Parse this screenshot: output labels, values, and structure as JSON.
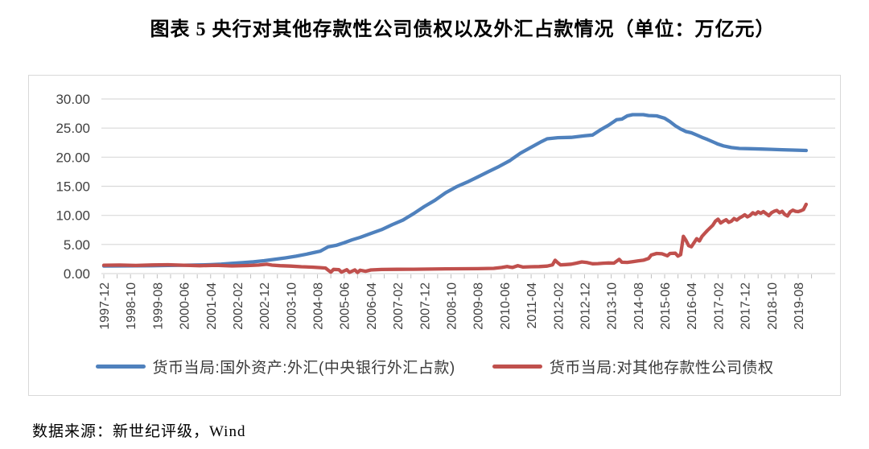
{
  "page": {
    "title": "图表 5  央行对其他存款性公司债权以及外汇占款情况（单位：万亿元）",
    "source": "数据来源：新世纪评级，Wind"
  },
  "chart_data": {
    "type": "line",
    "title": "央行对其他存款性公司债权以及外汇占款情况",
    "unit": "万亿元",
    "grid": true,
    "legend_position": "bottom",
    "x_axis": {
      "start": "1997-12",
      "end": "2019-11",
      "months_per_tick": 10,
      "tick_labels": [
        "1997-12",
        "1998-10",
        "1999-08",
        "2000-06",
        "2001-04",
        "2002-02",
        "2002-12",
        "2003-10",
        "2004-08",
        "2005-06",
        "2006-04",
        "2007-02",
        "2007-12",
        "2008-10",
        "2009-08",
        "2010-06",
        "2011-04",
        "2012-02",
        "2012-12",
        "2013-10",
        "2014-08",
        "2015-06",
        "2016-04",
        "2017-02",
        "2017-12",
        "2018-10",
        "2019-08"
      ]
    },
    "y_axis": {
      "min": 0,
      "max": 30,
      "step": 5,
      "tick_labels": [
        "0.00",
        "5.00",
        "10.00",
        "15.00",
        "20.00",
        "25.00",
        "30.00"
      ]
    },
    "series": [
      {
        "name": "货币当局:国外资产:外汇(中央银行外汇占款)",
        "color": "#4f81bd",
        "points": [
          [
            0,
            1.3
          ],
          [
            6,
            1.31
          ],
          [
            12,
            1.33
          ],
          [
            18,
            1.36
          ],
          [
            24,
            1.4
          ],
          [
            30,
            1.44
          ],
          [
            36,
            1.48
          ],
          [
            40,
            1.53
          ],
          [
            44,
            1.62
          ],
          [
            48,
            1.75
          ],
          [
            52,
            1.88
          ],
          [
            56,
            2.02
          ],
          [
            60,
            2.21
          ],
          [
            64,
            2.45
          ],
          [
            68,
            2.7
          ],
          [
            72,
            2.98
          ],
          [
            76,
            3.35
          ],
          [
            79,
            3.65
          ],
          [
            81,
            3.85
          ],
          [
            84,
            4.59
          ],
          [
            87,
            4.85
          ],
          [
            90,
            5.3
          ],
          [
            93,
            5.8
          ],
          [
            96,
            6.22
          ],
          [
            100,
            6.9
          ],
          [
            104,
            7.55
          ],
          [
            108,
            8.41
          ],
          [
            112,
            9.2
          ],
          [
            116,
            10.3
          ],
          [
            120,
            11.52
          ],
          [
            124,
            12.6
          ],
          [
            128,
            13.9
          ],
          [
            132,
            14.91
          ],
          [
            136,
            15.7
          ],
          [
            140,
            16.6
          ],
          [
            144,
            17.52
          ],
          [
            148,
            18.4
          ],
          [
            152,
            19.4
          ],
          [
            156,
            20.68
          ],
          [
            160,
            21.7
          ],
          [
            164,
            22.7
          ],
          [
            166,
            23.15
          ],
          [
            170,
            23.35
          ],
          [
            175,
            23.4
          ],
          [
            180,
            23.67
          ],
          [
            183,
            23.8
          ],
          [
            186,
            24.7
          ],
          [
            189,
            25.5
          ],
          [
            192,
            26.44
          ],
          [
            194,
            26.55
          ],
          [
            196,
            27.1
          ],
          [
            198,
            27.3
          ],
          [
            202,
            27.3
          ],
          [
            204,
            27.15
          ],
          [
            207,
            27.1
          ],
          [
            210,
            26.7
          ],
          [
            212,
            26.1
          ],
          [
            214,
            25.4
          ],
          [
            216,
            24.85
          ],
          [
            218,
            24.4
          ],
          [
            220,
            24.2
          ],
          [
            222,
            23.8
          ],
          [
            224,
            23.4
          ],
          [
            226,
            23.05
          ],
          [
            228,
            22.65
          ],
          [
            230,
            22.25
          ],
          [
            232,
            21.94
          ],
          [
            235,
            21.65
          ],
          [
            238,
            21.5
          ],
          [
            242,
            21.45
          ],
          [
            246,
            21.4
          ],
          [
            250,
            21.35
          ],
          [
            254,
            21.28
          ],
          [
            258,
            21.22
          ],
          [
            263,
            21.15
          ]
        ]
      },
      {
        "name": "货币当局:对其他存款性公司债权",
        "color": "#c0504d",
        "points": [
          [
            0,
            1.44
          ],
          [
            6,
            1.46
          ],
          [
            12,
            1.4
          ],
          [
            18,
            1.48
          ],
          [
            24,
            1.52
          ],
          [
            30,
            1.44
          ],
          [
            36,
            1.36
          ],
          [
            42,
            1.42
          ],
          [
            48,
            1.32
          ],
          [
            54,
            1.38
          ],
          [
            58,
            1.46
          ],
          [
            61,
            1.6
          ],
          [
            63,
            1.45
          ],
          [
            66,
            1.35
          ],
          [
            70,
            1.28
          ],
          [
            74,
            1.18
          ],
          [
            78,
            1.1
          ],
          [
            81,
            1.02
          ],
          [
            83,
            0.95
          ],
          [
            84,
            0.6
          ],
          [
            85,
            0.25
          ],
          [
            86,
            0.72
          ],
          [
            88,
            0.68
          ],
          [
            89,
            0.25
          ],
          [
            91,
            0.66
          ],
          [
            92,
            0.22
          ],
          [
            94,
            0.64
          ],
          [
            95,
            0.2
          ],
          [
            96,
            0.58
          ],
          [
            98,
            0.4
          ],
          [
            100,
            0.62
          ],
          [
            104,
            0.7
          ],
          [
            110,
            0.73
          ],
          [
            116,
            0.75
          ],
          [
            122,
            0.78
          ],
          [
            128,
            0.81
          ],
          [
            134,
            0.83
          ],
          [
            140,
            0.85
          ],
          [
            146,
            0.9
          ],
          [
            149,
            1.05
          ],
          [
            151,
            1.22
          ],
          [
            153,
            1.05
          ],
          [
            155,
            1.35
          ],
          [
            157,
            1.12
          ],
          [
            160,
            1.18
          ],
          [
            163,
            1.2
          ],
          [
            166,
            1.28
          ],
          [
            168,
            1.5
          ],
          [
            169,
            2.3
          ],
          [
            170,
            1.85
          ],
          [
            171,
            1.5
          ],
          [
            173,
            1.55
          ],
          [
            175,
            1.62
          ],
          [
            177,
            1.8
          ],
          [
            179,
            2.0
          ],
          [
            181,
            1.9
          ],
          [
            183,
            1.68
          ],
          [
            185,
            1.72
          ],
          [
            187,
            1.78
          ],
          [
            189,
            1.82
          ],
          [
            191,
            1.8
          ],
          [
            193,
            2.45
          ],
          [
            194,
            1.95
          ],
          [
            196,
            1.92
          ],
          [
            198,
            2.05
          ],
          [
            200,
            2.18
          ],
          [
            202,
            2.3
          ],
          [
            204,
            2.6
          ],
          [
            205,
            3.2
          ],
          [
            207,
            3.45
          ],
          [
            209,
            3.4
          ],
          [
            211,
            3.05
          ],
          [
            212,
            3.45
          ],
          [
            214,
            3.5
          ],
          [
            215,
            3.0
          ],
          [
            216,
            3.25
          ],
          [
            217,
            6.4
          ],
          [
            218,
            5.7
          ],
          [
            219,
            4.8
          ],
          [
            220,
            4.6
          ],
          [
            221,
            5.3
          ],
          [
            222,
            6.0
          ],
          [
            223,
            5.6
          ],
          [
            224,
            6.4
          ],
          [
            225,
            6.9
          ],
          [
            226,
            7.4
          ],
          [
            228,
            8.3
          ],
          [
            229,
            9.0
          ],
          [
            230,
            9.35
          ],
          [
            231,
            8.7
          ],
          [
            232,
            9.0
          ],
          [
            233,
            9.25
          ],
          [
            234,
            8.8
          ],
          [
            235,
            9.0
          ],
          [
            236,
            9.45
          ],
          [
            237,
            9.2
          ],
          [
            238,
            9.55
          ],
          [
            239,
            9.8
          ],
          [
            240,
            10.1
          ],
          [
            241,
            9.75
          ],
          [
            242,
            10.0
          ],
          [
            243,
            10.45
          ],
          [
            244,
            10.2
          ],
          [
            245,
            10.6
          ],
          [
            246,
            10.35
          ],
          [
            247,
            10.65
          ],
          [
            248,
            10.3
          ],
          [
            249,
            9.95
          ],
          [
            250,
            10.45
          ],
          [
            251,
            10.7
          ],
          [
            252,
            10.85
          ],
          [
            253,
            10.45
          ],
          [
            254,
            10.7
          ],
          [
            255,
            10.15
          ],
          [
            256,
            9.9
          ],
          [
            257,
            10.6
          ],
          [
            258,
            10.9
          ],
          [
            259,
            10.7
          ],
          [
            260,
            10.65
          ],
          [
            261,
            10.8
          ],
          [
            262,
            11.0
          ],
          [
            263,
            11.9
          ]
        ]
      }
    ]
  }
}
